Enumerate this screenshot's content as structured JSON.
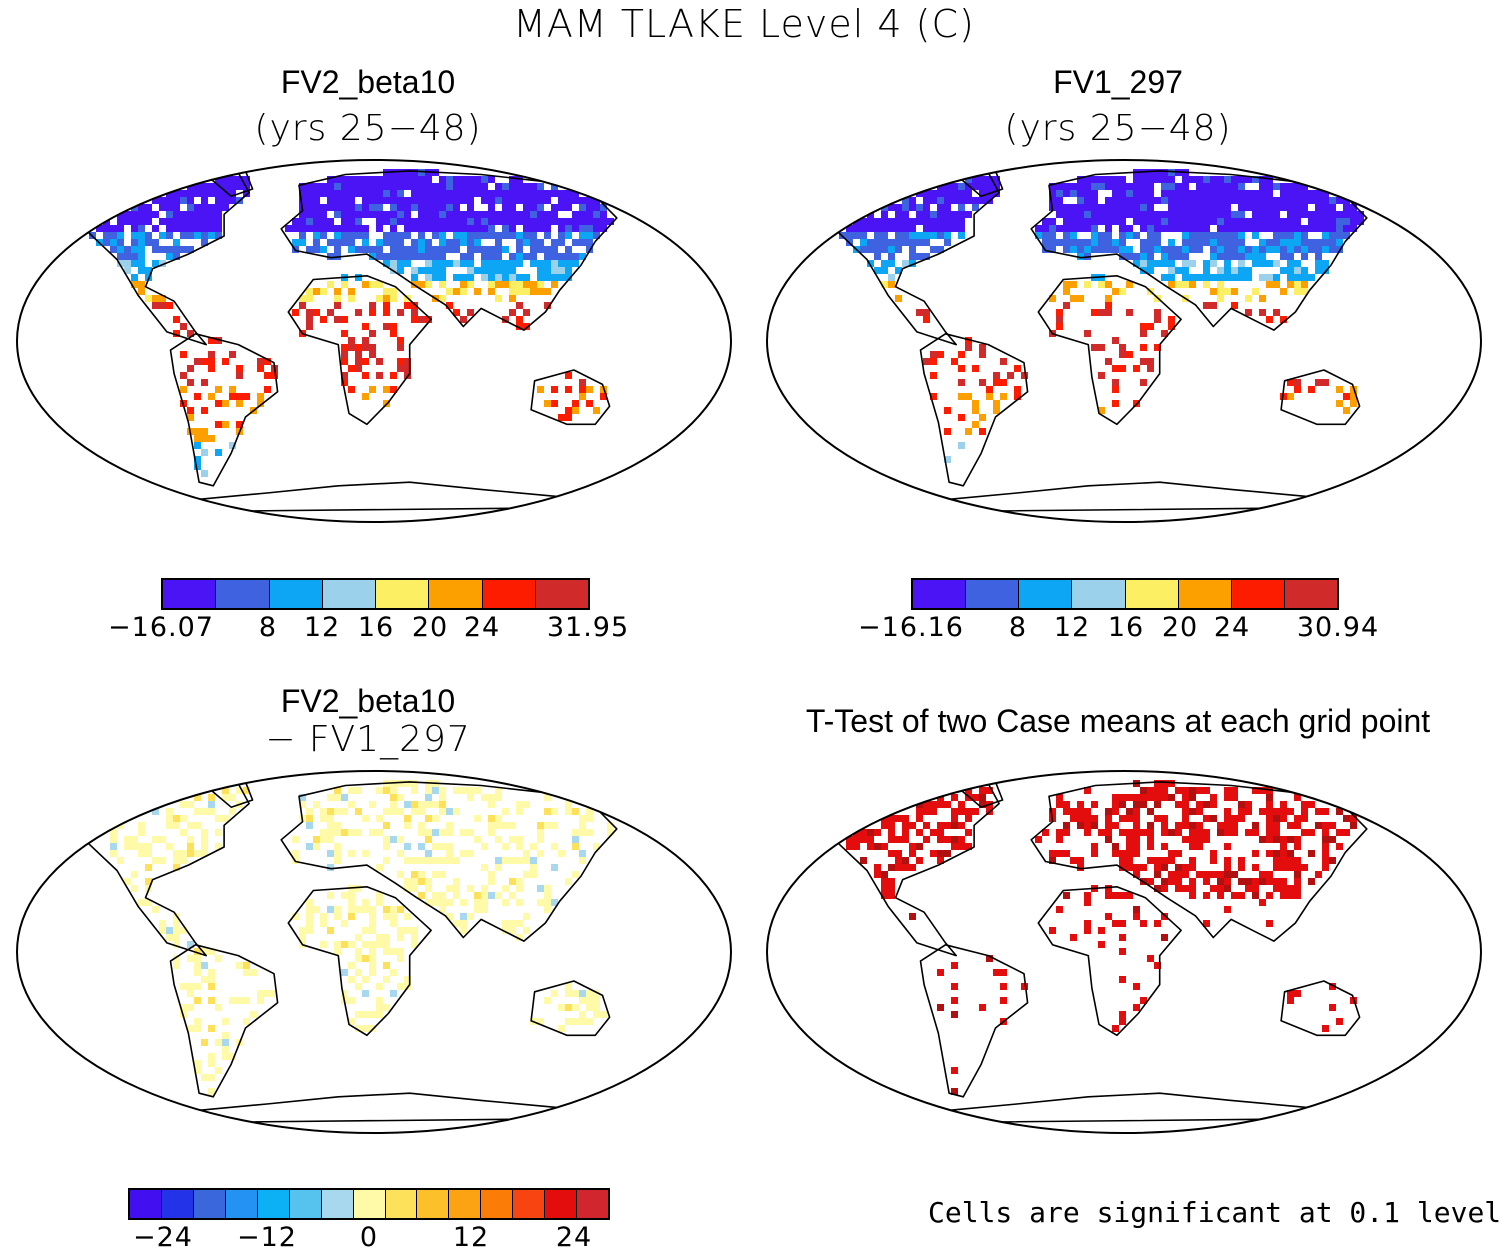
{
  "figure": {
    "title": "MAM TLAKE Level 4 (C)"
  },
  "panels": [
    {
      "title": "FV2_beta10",
      "subtitle": "(yrs 25−48)",
      "colorbar": {
        "colors": [
          "#4b14f5",
          "#3f63e0",
          "#0ca6f5",
          "#9cd1ec",
          "#fdef64",
          "#fca000",
          "#fd1c00",
          "#d02a2a"
        ],
        "tick_labels": [
          "−16.07",
          "8",
          "12",
          "16",
          "20",
          "24",
          "31.95"
        ]
      }
    },
    {
      "title": "FV1_297",
      "subtitle": "(yrs 25−48)",
      "colorbar": {
        "colors": [
          "#4b14f5",
          "#3f63e0",
          "#0ca6f5",
          "#9cd1ec",
          "#fdef64",
          "#fca000",
          "#fd1c00",
          "#d02a2a"
        ],
        "tick_labels": [
          "−16.16",
          "8",
          "12",
          "16",
          "20",
          "24",
          "30.94"
        ]
      }
    },
    {
      "title": "FV2_beta10",
      "subtitle": "− FV1_297",
      "colorbar": {
        "colors": [
          "#4210f0",
          "#2233e8",
          "#3a68dc",
          "#2392f2",
          "#0cb0f5",
          "#56c3ef",
          "#a7d8ee",
          "#fffaa8",
          "#fee15a",
          "#fcc12a",
          "#fca313",
          "#fb7d07",
          "#f74410",
          "#e30d0d",
          "#d1262d"
        ],
        "tick_labels": [
          "−24",
          "−12",
          "0",
          "12",
          "24"
        ]
      }
    },
    {
      "title": "T-Test of two Case means at each grid point",
      "note": "Cells are significant at 0.1 level"
    }
  ]
}
